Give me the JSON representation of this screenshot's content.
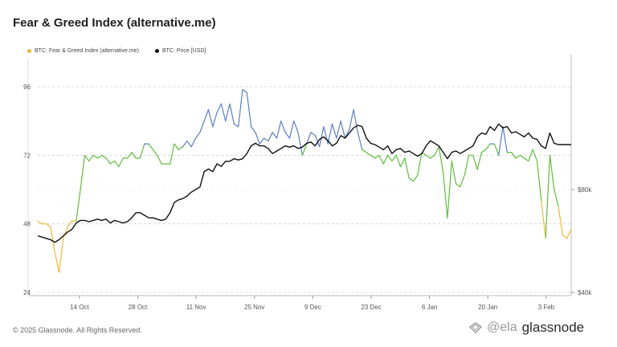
{
  "title": "Fear & Greed Index (alternative.me)",
  "footer": "© 2025 Glassnode. All Rights Reserved.",
  "watermark": {
    "handle": "@ela",
    "brand": "glassnode"
  },
  "colors": {
    "fear": "#f2b738",
    "neutral": "#5fbd3c",
    "greed": "#5b7fc4",
    "price": "#111111",
    "grid": "#cfcfcf"
  },
  "chart_data": {
    "type": "line",
    "legend": [
      "BTC: Fear & Greed Index (alternative.me)",
      "BTC: Price [USD]"
    ],
    "x_ticks": [
      "14 Oct",
      "28 Oct",
      "11 Nov",
      "25 Nov",
      "9 Dec",
      "23 Dec",
      "6 Jan",
      "20 Jan",
      "3 Feb"
    ],
    "y_left_ticks": [
      24,
      48,
      72,
      96
    ],
    "y_left_range": [
      24,
      96
    ],
    "y_right_ticks": [
      "$40k",
      "$80k"
    ],
    "y_right_range": [
      40000,
      110000
    ],
    "x_start": "2024-10-04",
    "x_end": "2025-02-09",
    "series": [
      {
        "name": "BTC: Fear & Greed Index (alternative.me)",
        "values": [
          49,
          48,
          48,
          47,
          38,
          31,
          43,
          47,
          49,
          49,
          60,
          72,
          70,
          72,
          71,
          72,
          71,
          69,
          70,
          68,
          71,
          71,
          73,
          71,
          71,
          76,
          76,
          74,
          72,
          69,
          69,
          69,
          76,
          74,
          75,
          77,
          75,
          78,
          80,
          84,
          88,
          82,
          87,
          90,
          84,
          90,
          83,
          82,
          95,
          94,
          82,
          80,
          76,
          78,
          77,
          80,
          78,
          84,
          80,
          78,
          84,
          80,
          72,
          76,
          80,
          79,
          75,
          82,
          76,
          83,
          78,
          84,
          78,
          81,
          88,
          80,
          74,
          73,
          72,
          71,
          72,
          69,
          72,
          70,
          72,
          68,
          71,
          64,
          63,
          65,
          73,
          72,
          71,
          72,
          75,
          66,
          50,
          70,
          62,
          61,
          65,
          72,
          72,
          67,
          73,
          74,
          76,
          76,
          72,
          82,
          73,
          73,
          71,
          72,
          71,
          70,
          74,
          70,
          56,
          43,
          72,
          60,
          54,
          44,
          43,
          46
        ],
        "zone_thresholds": {
          "fear_below": 50,
          "greed_above": 75
        }
      },
      {
        "name": "BTC: Price [USD]",
        "values": [
          62000,
          61500,
          61000,
          60500,
          59500,
          60500,
          62000,
          63500,
          64500,
          67000,
          68000,
          68000,
          67500,
          68000,
          68500,
          68000,
          68500,
          67000,
          68000,
          67500,
          67000,
          67500,
          69000,
          71000,
          71000,
          70000,
          69000,
          69000,
          68500,
          68000,
          68500,
          71000,
          75000,
          76000,
          76500,
          77500,
          79000,
          80000,
          81000,
          87000,
          88000,
          87000,
          90000,
          89000,
          91000,
          91000,
          92000,
          91500,
          92000,
          94000,
          97000,
          98000,
          97000,
          97000,
          96000,
          94000,
          95000,
          96000,
          97000,
          96500,
          97000,
          96000,
          96500,
          98000,
          98500,
          97000,
          99500,
          100500,
          99000,
          97000,
          98000,
          101000,
          100000,
          102000,
          104000,
          105000,
          104500,
          100000,
          98000,
          97500,
          96500,
          95500,
          97000,
          94000,
          95500,
          96000,
          94500,
          95000,
          94000,
          93000,
          94000,
          97000,
          99000,
          98000,
          97000,
          94500,
          92000,
          94500,
          95000,
          94000,
          95000,
          96000,
          97000,
          100500,
          102000,
          101500,
          104500,
          103000,
          105500,
          104000,
          104500,
          102000,
          102500,
          101500,
          100500,
          102000,
          100000,
          99500,
          97000,
          96000,
          102000,
          98000,
          97500,
          97500,
          97500,
          97500
        ]
      }
    ]
  }
}
